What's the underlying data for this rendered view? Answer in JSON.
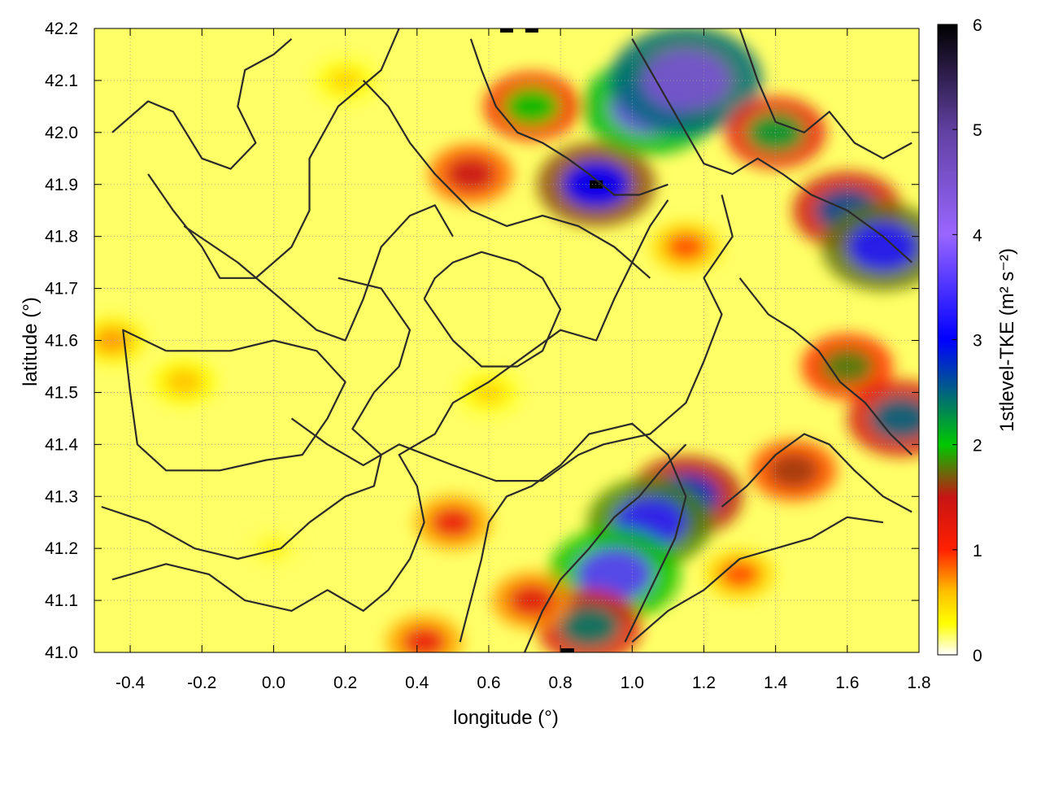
{
  "chart_data": {
    "type": "heatmap",
    "title": "",
    "xlabel": "longitude (°)",
    "ylabel": "latitude (°)",
    "xlim": [
      -0.5,
      1.8
    ],
    "ylim": [
      41.0,
      42.2
    ],
    "x_ticks": [
      -0.4,
      -0.2,
      0.0,
      0.2,
      0.4,
      0.6,
      0.8,
      1.0,
      1.2,
      1.4,
      1.6,
      1.8
    ],
    "x_tick_labels": [
      "-0.4",
      "-0.2",
      "0.0",
      "0.2",
      "0.4",
      "0.6",
      "0.8",
      "1.0",
      "1.2",
      "1.4",
      "1.6",
      "1.8"
    ],
    "y_ticks": [
      41.0,
      41.1,
      41.2,
      41.3,
      41.4,
      41.5,
      41.6,
      41.7,
      41.8,
      41.9,
      42.0,
      42.1,
      42.2
    ],
    "y_tick_labels": [
      "41.0",
      "41.1",
      "41.2",
      "41.3",
      "41.4",
      "41.5",
      "41.6",
      "41.7",
      "41.8",
      "41.9",
      "42.0",
      "42.1",
      "42.2"
    ],
    "grid": true,
    "colorbar": {
      "label": "1stlevel-TKE (m² s⁻²)",
      "range": [
        0,
        6
      ],
      "ticks": [
        0,
        1,
        2,
        3,
        4,
        5,
        6
      ],
      "tick_labels": [
        "0",
        "1",
        "2",
        "3",
        "4",
        "5",
        "6"
      ],
      "stops": [
        {
          "value": 0.0,
          "color": "#ffffff"
        },
        {
          "value": 0.3,
          "color": "#ffff00"
        },
        {
          "value": 0.6,
          "color": "#ffc000"
        },
        {
          "value": 1.0,
          "color": "#ff2000"
        },
        {
          "value": 1.5,
          "color": "#c81414"
        },
        {
          "value": 2.0,
          "color": "#00c800"
        },
        {
          "value": 3.0,
          "color": "#0000ff"
        },
        {
          "value": 4.0,
          "color": "#9966ff"
        },
        {
          "value": 5.0,
          "color": "#6040a0"
        },
        {
          "value": 6.0,
          "color": "#000000"
        }
      ]
    },
    "field_hotspots": [
      {
        "lon": 0.55,
        "lat": 41.92,
        "tke": 1.5
      },
      {
        "lon": 0.72,
        "lat": 42.05,
        "tke": 2.0
      },
      {
        "lon": 0.9,
        "lat": 41.9,
        "tke": 3.0
      },
      {
        "lon": 1.05,
        "lat": 42.05,
        "tke": 3.8
      },
      {
        "lon": 1.15,
        "lat": 42.1,
        "tke": 4.5
      },
      {
        "lon": 1.4,
        "lat": 42.0,
        "tke": 2.2
      },
      {
        "lon": 1.6,
        "lat": 41.85,
        "tke": 2.6
      },
      {
        "lon": 1.7,
        "lat": 41.78,
        "tke": 3.2
      },
      {
        "lon": 1.6,
        "lat": 41.55,
        "tke": 1.8
      },
      {
        "lon": 1.75,
        "lat": 41.45,
        "tke": 2.5
      },
      {
        "lon": 1.45,
        "lat": 41.35,
        "tke": 1.6
      },
      {
        "lon": 1.15,
        "lat": 41.3,
        "tke": 2.8
      },
      {
        "lon": 1.05,
        "lat": 41.25,
        "tke": 3.3
      },
      {
        "lon": 0.95,
        "lat": 41.15,
        "tke": 3.6
      },
      {
        "lon": 0.88,
        "lat": 41.05,
        "tke": 2.4
      },
      {
        "lon": 0.72,
        "lat": 41.1,
        "tke": 1.3
      },
      {
        "lon": 0.5,
        "lat": 41.25,
        "tke": 1.2
      },
      {
        "lon": 0.42,
        "lat": 41.02,
        "tke": 1.2
      },
      {
        "lon": 1.3,
        "lat": 41.15,
        "tke": 0.9
      },
      {
        "lon": -0.25,
        "lat": 41.52,
        "tke": 0.6
      },
      {
        "lon": -0.45,
        "lat": 41.6,
        "tke": 0.7
      },
      {
        "lon": 0.6,
        "lat": 41.5,
        "tke": 0.5
      },
      {
        "lon": 1.15,
        "lat": 41.78,
        "tke": 0.9
      },
      {
        "lon": 0.2,
        "lat": 42.1,
        "tke": 0.5
      },
      {
        "lon": 0.0,
        "lat": 41.2,
        "tke": 0.35
      }
    ],
    "black_spots": [
      {
        "lon": 0.65,
        "lat": 42.2
      },
      {
        "lon": 0.9,
        "lat": 41.9
      },
      {
        "lon": 0.82,
        "lat": 41.0
      },
      {
        "lon": 0.72,
        "lat": 42.2
      }
    ],
    "contour_lines": [
      [
        [
          -0.45,
          42.0
        ],
        [
          -0.35,
          42.06
        ],
        [
          -0.28,
          42.04
        ],
        [
          -0.2,
          41.95
        ],
        [
          -0.12,
          41.93
        ],
        [
          -0.05,
          41.98
        ],
        [
          -0.1,
          42.05
        ],
        [
          -0.08,
          42.12
        ],
        [
          0.0,
          42.15
        ],
        [
          0.05,
          42.18
        ]
      ],
      [
        [
          -0.35,
          41.92
        ],
        [
          -0.28,
          41.85
        ],
        [
          -0.2,
          41.78
        ],
        [
          -0.15,
          41.72
        ],
        [
          -0.05,
          41.72
        ],
        [
          0.05,
          41.78
        ],
        [
          0.1,
          41.85
        ],
        [
          0.1,
          41.95
        ],
        [
          0.18,
          42.05
        ],
        [
          0.3,
          42.12
        ],
        [
          0.35,
          42.2
        ]
      ],
      [
        [
          -0.3,
          41.58
        ],
        [
          -0.42,
          41.62
        ],
        [
          -0.4,
          41.5
        ],
        [
          -0.38,
          41.4
        ],
        [
          -0.3,
          41.35
        ],
        [
          -0.15,
          41.35
        ],
        [
          -0.02,
          41.37
        ],
        [
          0.08,
          41.38
        ],
        [
          0.15,
          41.45
        ],
        [
          0.2,
          41.52
        ],
        [
          0.12,
          41.58
        ],
        [
          0.0,
          41.6
        ],
        [
          -0.12,
          41.58
        ],
        [
          -0.22,
          41.58
        ],
        [
          -0.3,
          41.58
        ]
      ],
      [
        [
          -0.48,
          41.28
        ],
        [
          -0.35,
          41.25
        ],
        [
          -0.22,
          41.2
        ],
        [
          -0.1,
          41.18
        ],
        [
          0.02,
          41.2
        ],
        [
          0.1,
          41.25
        ],
        [
          0.2,
          41.3
        ],
        [
          0.28,
          41.32
        ],
        [
          0.3,
          41.38
        ],
        [
          0.22,
          41.43
        ],
        [
          0.28,
          41.5
        ],
        [
          0.35,
          41.55
        ],
        [
          0.38,
          41.62
        ],
        [
          0.3,
          41.7
        ],
        [
          0.18,
          41.72
        ]
      ],
      [
        [
          -0.45,
          41.14
        ],
        [
          -0.3,
          41.17
        ],
        [
          -0.18,
          41.15
        ],
        [
          -0.08,
          41.1
        ],
        [
          0.05,
          41.08
        ],
        [
          0.15,
          41.12
        ],
        [
          0.25,
          41.08
        ],
        [
          0.32,
          41.12
        ],
        [
          0.38,
          41.18
        ],
        [
          0.42,
          41.25
        ],
        [
          0.4,
          41.32
        ],
        [
          0.35,
          41.38
        ],
        [
          0.45,
          41.42
        ],
        [
          0.5,
          41.48
        ],
        [
          0.6,
          41.52
        ],
        [
          0.72,
          41.58
        ],
        [
          0.8,
          41.62
        ],
        [
          0.9,
          41.6
        ],
        [
          0.95,
          41.68
        ],
        [
          1.0,
          41.75
        ],
        [
          1.05,
          41.82
        ],
        [
          1.1,
          41.87
        ]
      ],
      [
        [
          0.05,
          41.45
        ],
        [
          0.15,
          41.4
        ],
        [
          0.25,
          41.36
        ],
        [
          0.35,
          41.4
        ],
        [
          0.5,
          41.36
        ],
        [
          0.62,
          41.33
        ],
        [
          0.75,
          41.33
        ],
        [
          0.85,
          41.38
        ],
        [
          0.92,
          41.4
        ],
        [
          1.05,
          41.42
        ],
        [
          1.15,
          41.48
        ],
        [
          1.2,
          41.56
        ],
        [
          1.25,
          41.65
        ],
        [
          1.2,
          41.72
        ],
        [
          1.28,
          41.8
        ],
        [
          1.25,
          41.88
        ]
      ],
      [
        [
          0.42,
          41.68
        ],
        [
          0.5,
          41.6
        ],
        [
          0.58,
          41.55
        ],
        [
          0.68,
          41.55
        ],
        [
          0.75,
          41.58
        ],
        [
          0.8,
          41.66
        ],
        [
          0.75,
          41.72
        ],
        [
          0.68,
          41.75
        ],
        [
          0.58,
          41.77
        ],
        [
          0.5,
          41.75
        ],
        [
          0.45,
          41.72
        ],
        [
          0.42,
          41.68
        ]
      ],
      [
        [
          0.52,
          41.02
        ],
        [
          0.55,
          41.1
        ],
        [
          0.58,
          41.18
        ],
        [
          0.6,
          41.25
        ],
        [
          0.65,
          41.3
        ],
        [
          0.72,
          41.32
        ],
        [
          0.8,
          41.36
        ],
        [
          0.88,
          41.42
        ],
        [
          1.0,
          41.44
        ],
        [
          1.1,
          41.38
        ],
        [
          1.15,
          41.3
        ],
        [
          1.12,
          41.22
        ],
        [
          1.05,
          41.12
        ],
        [
          0.98,
          41.02
        ]
      ],
      [
        [
          0.7,
          41.0
        ],
        [
          0.75,
          41.08
        ],
        [
          0.8,
          41.14
        ],
        [
          0.88,
          41.2
        ],
        [
          0.95,
          41.26
        ],
        [
          1.02,
          41.3
        ],
        [
          1.08,
          41.35
        ],
        [
          1.15,
          41.4
        ]
      ],
      [
        [
          0.55,
          42.18
        ],
        [
          0.58,
          42.12
        ],
        [
          0.62,
          42.05
        ],
        [
          0.68,
          42.0
        ],
        [
          0.75,
          41.98
        ],
        [
          0.82,
          41.95
        ],
        [
          0.88,
          41.92
        ],
        [
          0.95,
          41.88
        ],
        [
          1.02,
          41.88
        ],
        [
          1.1,
          41.9
        ]
      ],
      [
        [
          0.25,
          42.1
        ],
        [
          0.32,
          42.05
        ],
        [
          0.38,
          41.98
        ],
        [
          0.45,
          41.92
        ],
        [
          0.55,
          41.85
        ],
        [
          0.65,
          41.82
        ],
        [
          0.75,
          41.84
        ],
        [
          0.85,
          41.82
        ],
        [
          0.95,
          41.78
        ],
        [
          1.05,
          41.72
        ]
      ],
      [
        [
          1.0,
          42.18
        ],
        [
          1.05,
          42.12
        ],
        [
          1.1,
          42.06
        ],
        [
          1.15,
          42.0
        ],
        [
          1.2,
          41.94
        ],
        [
          1.28,
          41.92
        ],
        [
          1.35,
          41.95
        ],
        [
          1.42,
          41.92
        ],
        [
          1.5,
          41.88
        ],
        [
          1.6,
          41.85
        ],
        [
          1.7,
          41.8
        ],
        [
          1.78,
          41.75
        ]
      ],
      [
        [
          1.3,
          42.2
        ],
        [
          1.35,
          42.1
        ],
        [
          1.4,
          42.02
        ],
        [
          1.48,
          42.0
        ],
        [
          1.55,
          42.04
        ],
        [
          1.62,
          41.98
        ],
        [
          1.7,
          41.95
        ],
        [
          1.78,
          41.98
        ]
      ],
      [
        [
          1.3,
          41.72
        ],
        [
          1.38,
          41.65
        ],
        [
          1.45,
          41.62
        ],
        [
          1.52,
          41.58
        ],
        [
          1.58,
          41.52
        ],
        [
          1.65,
          41.48
        ],
        [
          1.72,
          41.42
        ],
        [
          1.78,
          41.38
        ]
      ],
      [
        [
          1.25,
          41.28
        ],
        [
          1.32,
          41.32
        ],
        [
          1.4,
          41.38
        ],
        [
          1.48,
          41.42
        ],
        [
          1.55,
          41.4
        ],
        [
          1.62,
          41.35
        ],
        [
          1.7,
          41.3
        ],
        [
          1.78,
          41.27
        ]
      ],
      [
        [
          1.0,
          41.02
        ],
        [
          1.1,
          41.08
        ],
        [
          1.2,
          41.12
        ],
        [
          1.3,
          41.18
        ],
        [
          1.4,
          41.2
        ],
        [
          1.5,
          41.22
        ],
        [
          1.6,
          41.26
        ],
        [
          1.7,
          41.25
        ]
      ],
      [
        [
          -0.25,
          41.82
        ],
        [
          -0.1,
          41.75
        ],
        [
          0.02,
          41.68
        ],
        [
          0.12,
          41.62
        ],
        [
          0.2,
          41.6
        ],
        [
          0.25,
          41.68
        ],
        [
          0.3,
          41.78
        ],
        [
          0.38,
          41.84
        ],
        [
          0.45,
          41.86
        ],
        [
          0.5,
          41.8
        ]
      ]
    ]
  }
}
